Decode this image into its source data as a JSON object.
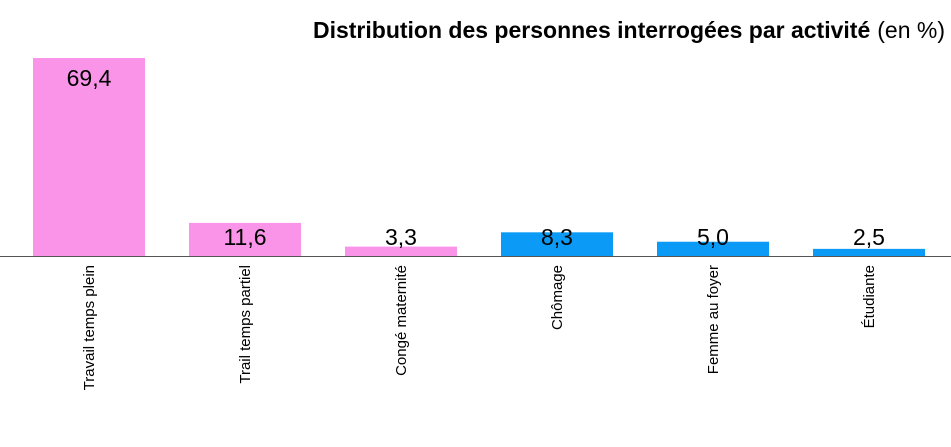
{
  "chart_data": {
    "type": "bar",
    "title": "Distribution des personnes interrogées par activité",
    "title_suffix": "(en %)",
    "categories": [
      "Travail temps plein",
      "Trail temps partiel",
      "Congé maternité",
      "Chômage",
      "Femme au foyer",
      "Étudiante"
    ],
    "values": [
      69.4,
      11.6,
      3.3,
      8.3,
      5.0,
      2.5
    ],
    "value_labels": [
      "69,4",
      "11,6",
      "3,3",
      "8,3",
      "5,0",
      "2,5"
    ],
    "colors": [
      "#f994e8",
      "#f994e8",
      "#f994e8",
      "#0b9bf6",
      "#0b9bf6",
      "#0b9bf6"
    ]
  }
}
